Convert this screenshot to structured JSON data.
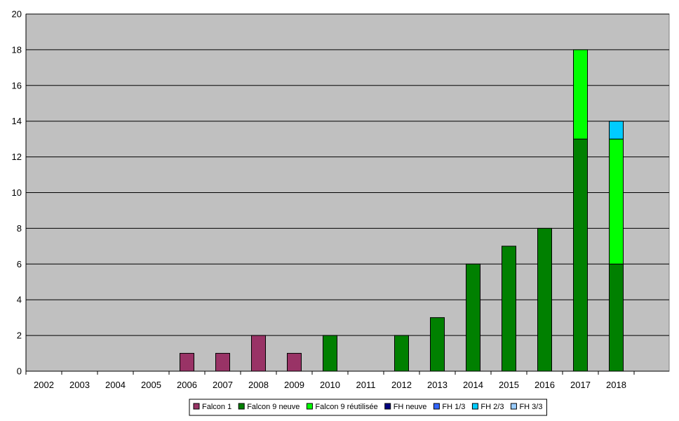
{
  "chart_data": {
    "type": "bar",
    "stacked": true,
    "categories": [
      "2002",
      "2003",
      "2004",
      "2005",
      "2006",
      "2007",
      "2008",
      "2009",
      "2010",
      "2011",
      "2012",
      "2013",
      "2014",
      "2015",
      "2016",
      "2017",
      "2018"
    ],
    "series": [
      {
        "name": "Falcon 1",
        "color": "#993366",
        "values": [
          0,
          0,
          0,
          0,
          1,
          1,
          2,
          1,
          0,
          0,
          0,
          0,
          0,
          0,
          0,
          0,
          0
        ]
      },
      {
        "name": "Falcon 9 neuve",
        "color": "#008000",
        "values": [
          0,
          0,
          0,
          0,
          0,
          0,
          0,
          0,
          2,
          0,
          2,
          3,
          6,
          7,
          8,
          13,
          6
        ]
      },
      {
        "name": "Falcon 9 réutilisée",
        "color": "#00FF00",
        "values": [
          0,
          0,
          0,
          0,
          0,
          0,
          0,
          0,
          0,
          0,
          0,
          0,
          0,
          0,
          0,
          5,
          7
        ]
      },
      {
        "name": "FH neuve",
        "color": "#000080",
        "values": [
          0,
          0,
          0,
          0,
          0,
          0,
          0,
          0,
          0,
          0,
          0,
          0,
          0,
          0,
          0,
          0,
          0
        ]
      },
      {
        "name": "FH 1/3",
        "color": "#3366FF",
        "values": [
          0,
          0,
          0,
          0,
          0,
          0,
          0,
          0,
          0,
          0,
          0,
          0,
          0,
          0,
          0,
          0,
          0
        ]
      },
      {
        "name": "FH 2/3",
        "color": "#00CCFF",
        "values": [
          0,
          0,
          0,
          0,
          0,
          0,
          0,
          0,
          0,
          0,
          0,
          0,
          0,
          0,
          0,
          0,
          1
        ]
      },
      {
        "name": "FH 3/3",
        "color": "#99CCFF",
        "values": [
          0,
          0,
          0,
          0,
          0,
          0,
          0,
          0,
          0,
          0,
          0,
          0,
          0,
          0,
          0,
          0,
          0
        ]
      }
    ],
    "title": "",
    "xlabel": "",
    "ylabel": "",
    "ylim": [
      0,
      20
    ],
    "yticks": [
      0,
      2,
      4,
      6,
      8,
      10,
      12,
      14,
      16,
      18,
      20
    ],
    "grid": true,
    "legend": "bottom",
    "plot_background": "#C0C0C0"
  }
}
